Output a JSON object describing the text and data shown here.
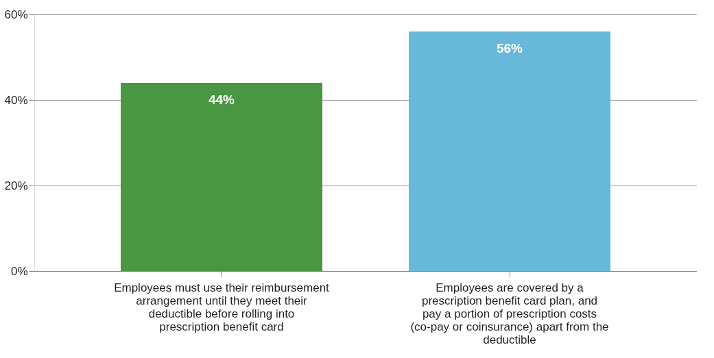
{
  "chart_data": {
    "type": "bar",
    "categories": [
      "Employees must use their reimbursement arrangement until they meet their deductible before rolling into prescription benefit card",
      "Employees are covered by a prescription benefit card plan, and pay a portion of prescription costs (co-pay or coinsurance) apart from the deductible"
    ],
    "values": [
      44,
      56
    ],
    "colors": [
      "#4a9642",
      "#67b8d9"
    ],
    "value_labels": [
      "44%",
      "56%"
    ],
    "ylim": [
      0,
      60
    ],
    "yticks": [
      {
        "value": 0,
        "label": "0%"
      },
      {
        "value": 20,
        "label": "20%"
      },
      {
        "value": 40,
        "label": "40%"
      },
      {
        "value": 60,
        "label": "60%"
      }
    ],
    "grid": "y"
  }
}
